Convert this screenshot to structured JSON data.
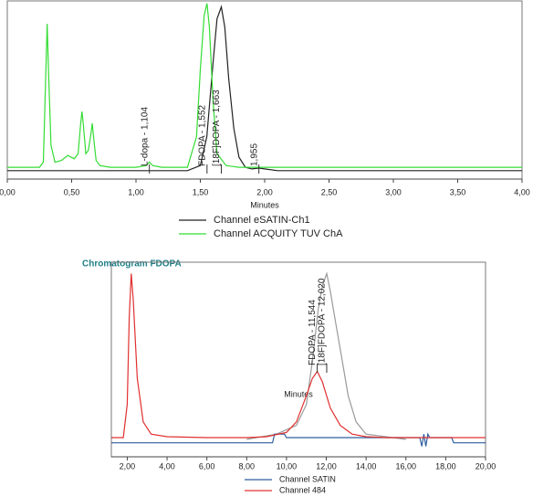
{
  "chart_data": [
    {
      "type": "line",
      "x_label": "Minutes",
      "xlim": [
        0,
        4
      ],
      "xticks": [
        {
          "value": 0,
          "label": "0,00"
        },
        {
          "value": 0.5,
          "label": "0,50"
        },
        {
          "value": 1,
          "label": "1,00"
        },
        {
          "value": 1.5,
          "label": "1,50"
        },
        {
          "value": 2,
          "label": "2,00"
        },
        {
          "value": 2.5,
          "label": "2,50"
        },
        {
          "value": 3,
          "label": "3,00"
        },
        {
          "value": 3.5,
          "label": "3,50"
        },
        {
          "value": 4,
          "label": "4,00"
        }
      ],
      "ylim": [
        -5,
        100
      ],
      "series": [
        {
          "name": "Channel eSATIN-Ch1",
          "color": "#222222",
          "x": [
            0,
            1.0,
            1.4,
            1.5,
            1.55,
            1.6,
            1.63,
            1.663,
            1.69,
            1.72,
            1.76,
            1.8,
            1.85,
            1.9,
            1.955,
            2.0,
            2.1,
            2.5,
            4.0
          ],
          "values": [
            0,
            0,
            0,
            3,
            20,
            65,
            90,
            97,
            85,
            55,
            25,
            8,
            2,
            1,
            1.5,
            1,
            0,
            0,
            0
          ]
        },
        {
          "name": "Channel ACQUITY TUV ChA",
          "color": "#33dd33",
          "x": [
            0,
            0.25,
            0.28,
            0.3,
            0.31,
            0.32,
            0.34,
            0.37,
            0.42,
            0.47,
            0.52,
            0.55,
            0.57,
            0.58,
            0.59,
            0.61,
            0.63,
            0.65,
            0.66,
            0.67,
            0.69,
            0.72,
            0.8,
            1.0,
            1.08,
            1.104,
            1.13,
            1.2,
            1.4,
            1.47,
            1.5,
            1.53,
            1.552,
            1.57,
            1.6,
            1.63,
            1.7,
            1.8,
            2.0,
            2.5,
            3.0,
            4.0
          ],
          "values": [
            2,
            2,
            5,
            60,
            87,
            60,
            15,
            5,
            6,
            9,
            7,
            10,
            28,
            35,
            28,
            10,
            12,
            22,
            28,
            20,
            6,
            3,
            2,
            2,
            3,
            5,
            3,
            2,
            2,
            20,
            60,
            92,
            99,
            85,
            40,
            10,
            3,
            2,
            2,
            2,
            2,
            2
          ]
        }
      ],
      "annotations": [
        {
          "text": "L-dopa - 1,104",
          "x": 1.104
        },
        {
          "text": "FDOPA - 1,552",
          "x": 1.552
        },
        {
          "text": "[18F]DOPA - 1,663",
          "x": 1.663
        },
        {
          "text": "1,955",
          "x": 1.955
        }
      ]
    },
    {
      "type": "line",
      "title": "Chromatogram FDOPA",
      "x_label": "Minutes",
      "xlim": [
        1.2,
        20
      ],
      "xticks": [
        {
          "value": 2,
          "label": "2,00"
        },
        {
          "value": 4,
          "label": "4,00"
        },
        {
          "value": 6,
          "label": "6,00"
        },
        {
          "value": 8,
          "label": "8,00"
        },
        {
          "value": 10,
          "label": "10,00"
        },
        {
          "value": 12,
          "label": "12,00"
        },
        {
          "value": 14,
          "label": "14,00"
        },
        {
          "value": 16,
          "label": "16,00"
        },
        {
          "value": 18,
          "label": "18,00"
        },
        {
          "value": 20,
          "label": "20,00"
        }
      ],
      "ylim": [
        -10,
        100
      ],
      "series": [
        {
          "color": "#9a9a9a",
          "x": [
            8,
            9.5,
            10.5,
            11,
            11.3,
            11.6,
            11.8,
            12.02,
            12.2,
            12.5,
            12.8,
            13.1,
            13.5,
            14,
            16
          ],
          "values": [
            0,
            3,
            8,
            20,
            45,
            75,
            88,
            95,
            85,
            65,
            45,
            25,
            10,
            3,
            0
          ]
        },
        {
          "name": "Channel SATIN",
          "color": "#2f5f9e",
          "x": [
            1.2,
            9.3,
            9.4,
            9.9,
            10,
            16.7,
            16.8,
            16.9,
            17.0,
            17.1,
            17.2,
            18.3,
            18.4,
            20
          ],
          "values": [
            -2,
            -2,
            3,
            3,
            1,
            1,
            -4,
            3,
            -4,
            3,
            1,
            1,
            -2,
            -2
          ]
        },
        {
          "name": "Channel 484",
          "color": "#e03030",
          "x": [
            1.2,
            1.8,
            2.0,
            2.1,
            2.2,
            2.3,
            2.5,
            2.8,
            3.2,
            4,
            6,
            8,
            9,
            10,
            10.5,
            11,
            11.3,
            11.544,
            11.8,
            12.2,
            12.7,
            13.3,
            14,
            15,
            17,
            20
          ],
          "values": [
            1,
            1,
            20,
            70,
            95,
            80,
            35,
            10,
            3,
            1.5,
            1,
            1,
            1.5,
            4,
            10,
            25,
            35,
            39,
            33,
            18,
            8,
            3,
            1.5,
            1,
            1,
            1
          ]
        }
      ],
      "annotations": [
        {
          "text": "FDOPA - 11,544",
          "x": 11.544
        },
        {
          "text": "[18F]FDOPA - 12,020",
          "x": 12.02
        }
      ]
    }
  ]
}
